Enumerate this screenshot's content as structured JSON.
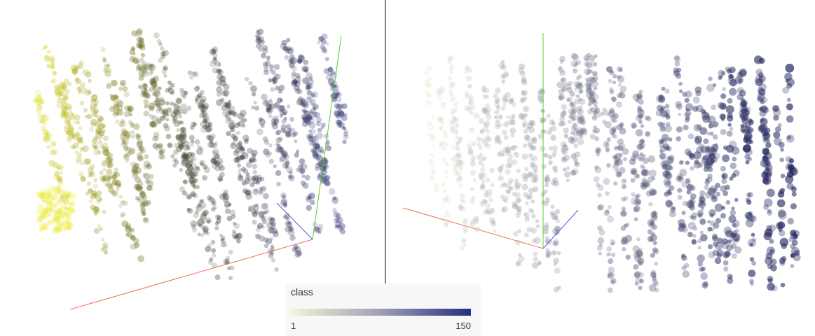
{
  "legend": {
    "title": "class",
    "min_label": "1",
    "max_label": "150"
  }
}
